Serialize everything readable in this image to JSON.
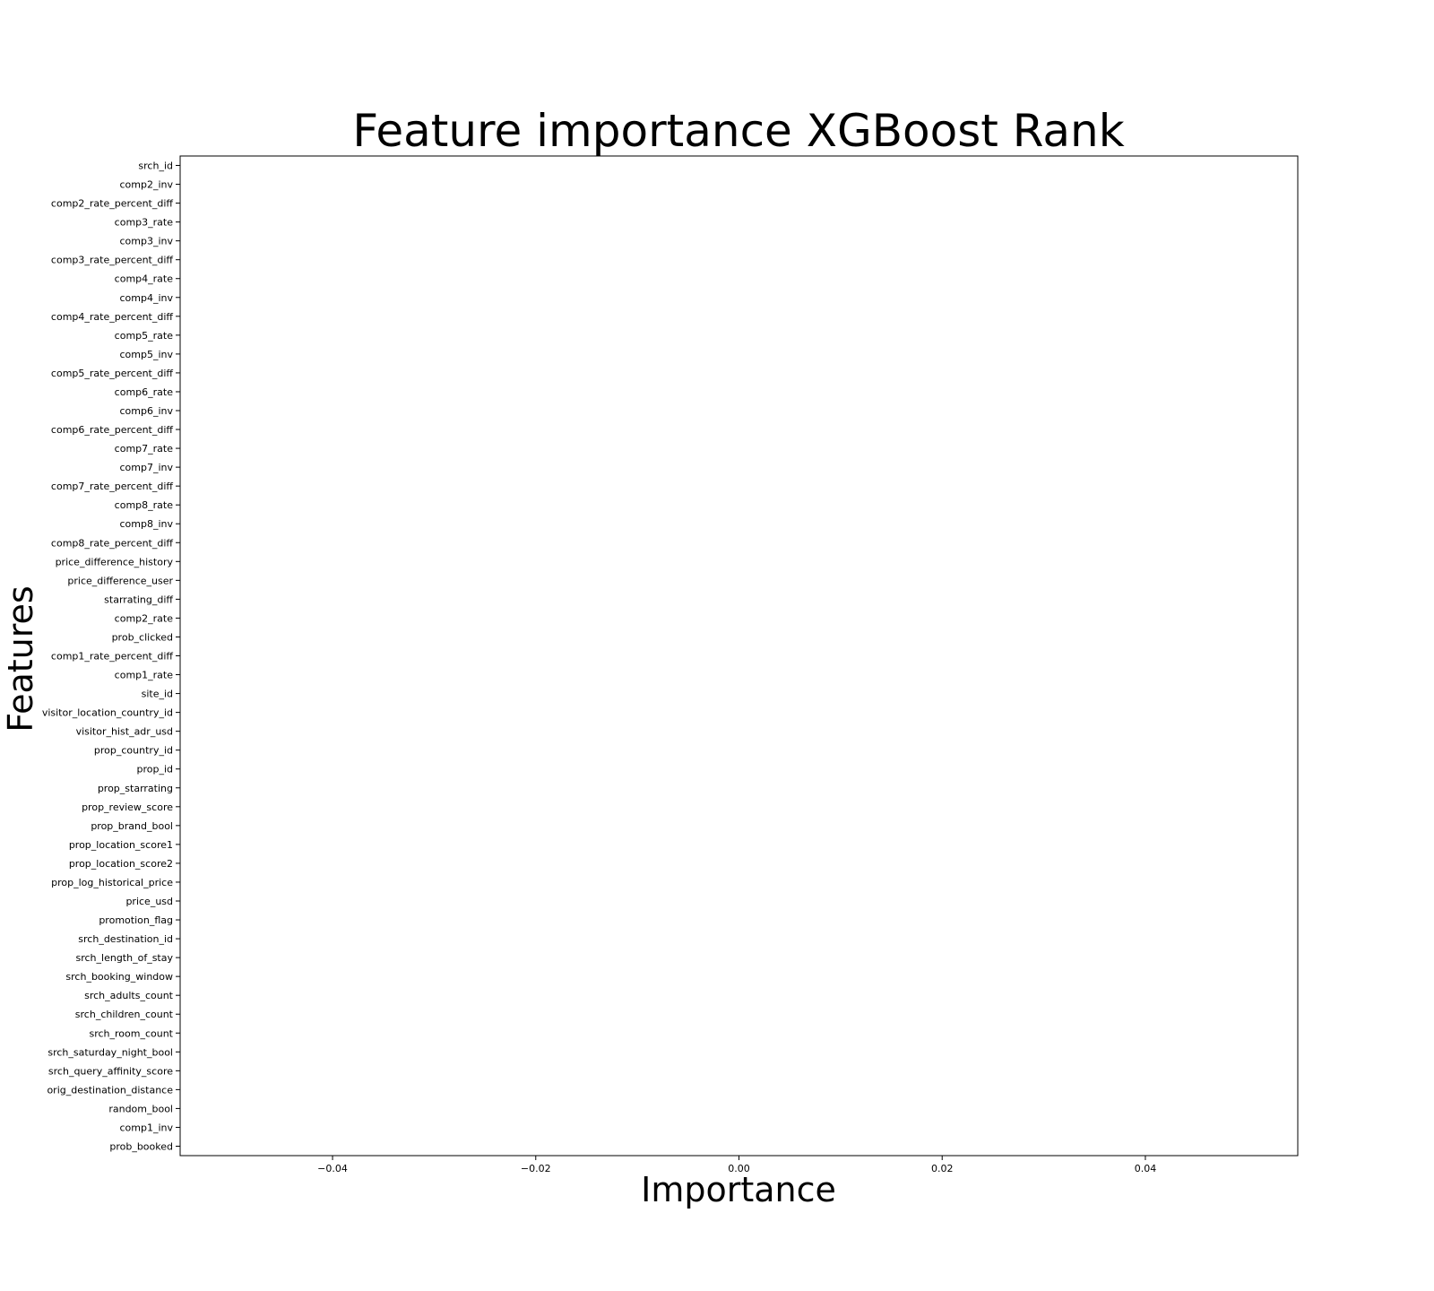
{
  "chart_data": {
    "type": "bar",
    "title": "Feature importance XGBoost Rank",
    "xlabel": "Importance",
    "ylabel": "Features",
    "xlim": [
      -0.055,
      0.055
    ],
    "xticks": [
      -0.04,
      -0.02,
      0.0,
      0.02,
      0.04
    ],
    "xtick_labels": [
      "−0.04",
      "−0.02",
      "0.00",
      "0.02",
      "0.04"
    ],
    "grid": false,
    "categories": [
      "srch_id",
      "comp2_inv",
      "comp2_rate_percent_diff",
      "comp3_rate",
      "comp3_inv",
      "comp3_rate_percent_diff",
      "comp4_rate",
      "comp4_inv",
      "comp4_rate_percent_diff",
      "comp5_rate",
      "comp5_inv",
      "comp5_rate_percent_diff",
      "comp6_rate",
      "comp6_inv",
      "comp6_rate_percent_diff",
      "comp7_rate",
      "comp7_inv",
      "comp7_rate_percent_diff",
      "comp8_rate",
      "comp8_inv",
      "comp8_rate_percent_diff",
      "price_difference_history",
      "price_difference_user",
      "starrating_diff",
      "comp2_rate",
      "prob_clicked",
      "comp1_rate_percent_diff",
      "comp1_rate",
      "site_id",
      "visitor_location_country_id",
      "visitor_hist_adr_usd",
      "prop_country_id",
      "prop_id",
      "prop_starrating",
      "prop_review_score",
      "prop_brand_bool",
      "prop_location_score1",
      "prop_location_score2",
      "prop_log_historical_price",
      "price_usd",
      "promotion_flag",
      "srch_destination_id",
      "srch_length_of_stay",
      "srch_booking_window",
      "srch_adults_count",
      "srch_children_count",
      "srch_room_count",
      "srch_saturday_night_bool",
      "srch_query_affinity_score",
      "orig_destination_distance",
      "random_bool",
      "comp1_inv",
      "prob_booked"
    ],
    "values": [
      0,
      0,
      0,
      0,
      0,
      0,
      0,
      0,
      0,
      0,
      0,
      0,
      0,
      0,
      0,
      0,
      0,
      0,
      0,
      0,
      0,
      0,
      0,
      0,
      0,
      0,
      0,
      0,
      0,
      0,
      0,
      0,
      0,
      0,
      0,
      0,
      0,
      0,
      0,
      0,
      0,
      0,
      0,
      0,
      0,
      0,
      0,
      0,
      0,
      0,
      0,
      0,
      0
    ]
  }
}
